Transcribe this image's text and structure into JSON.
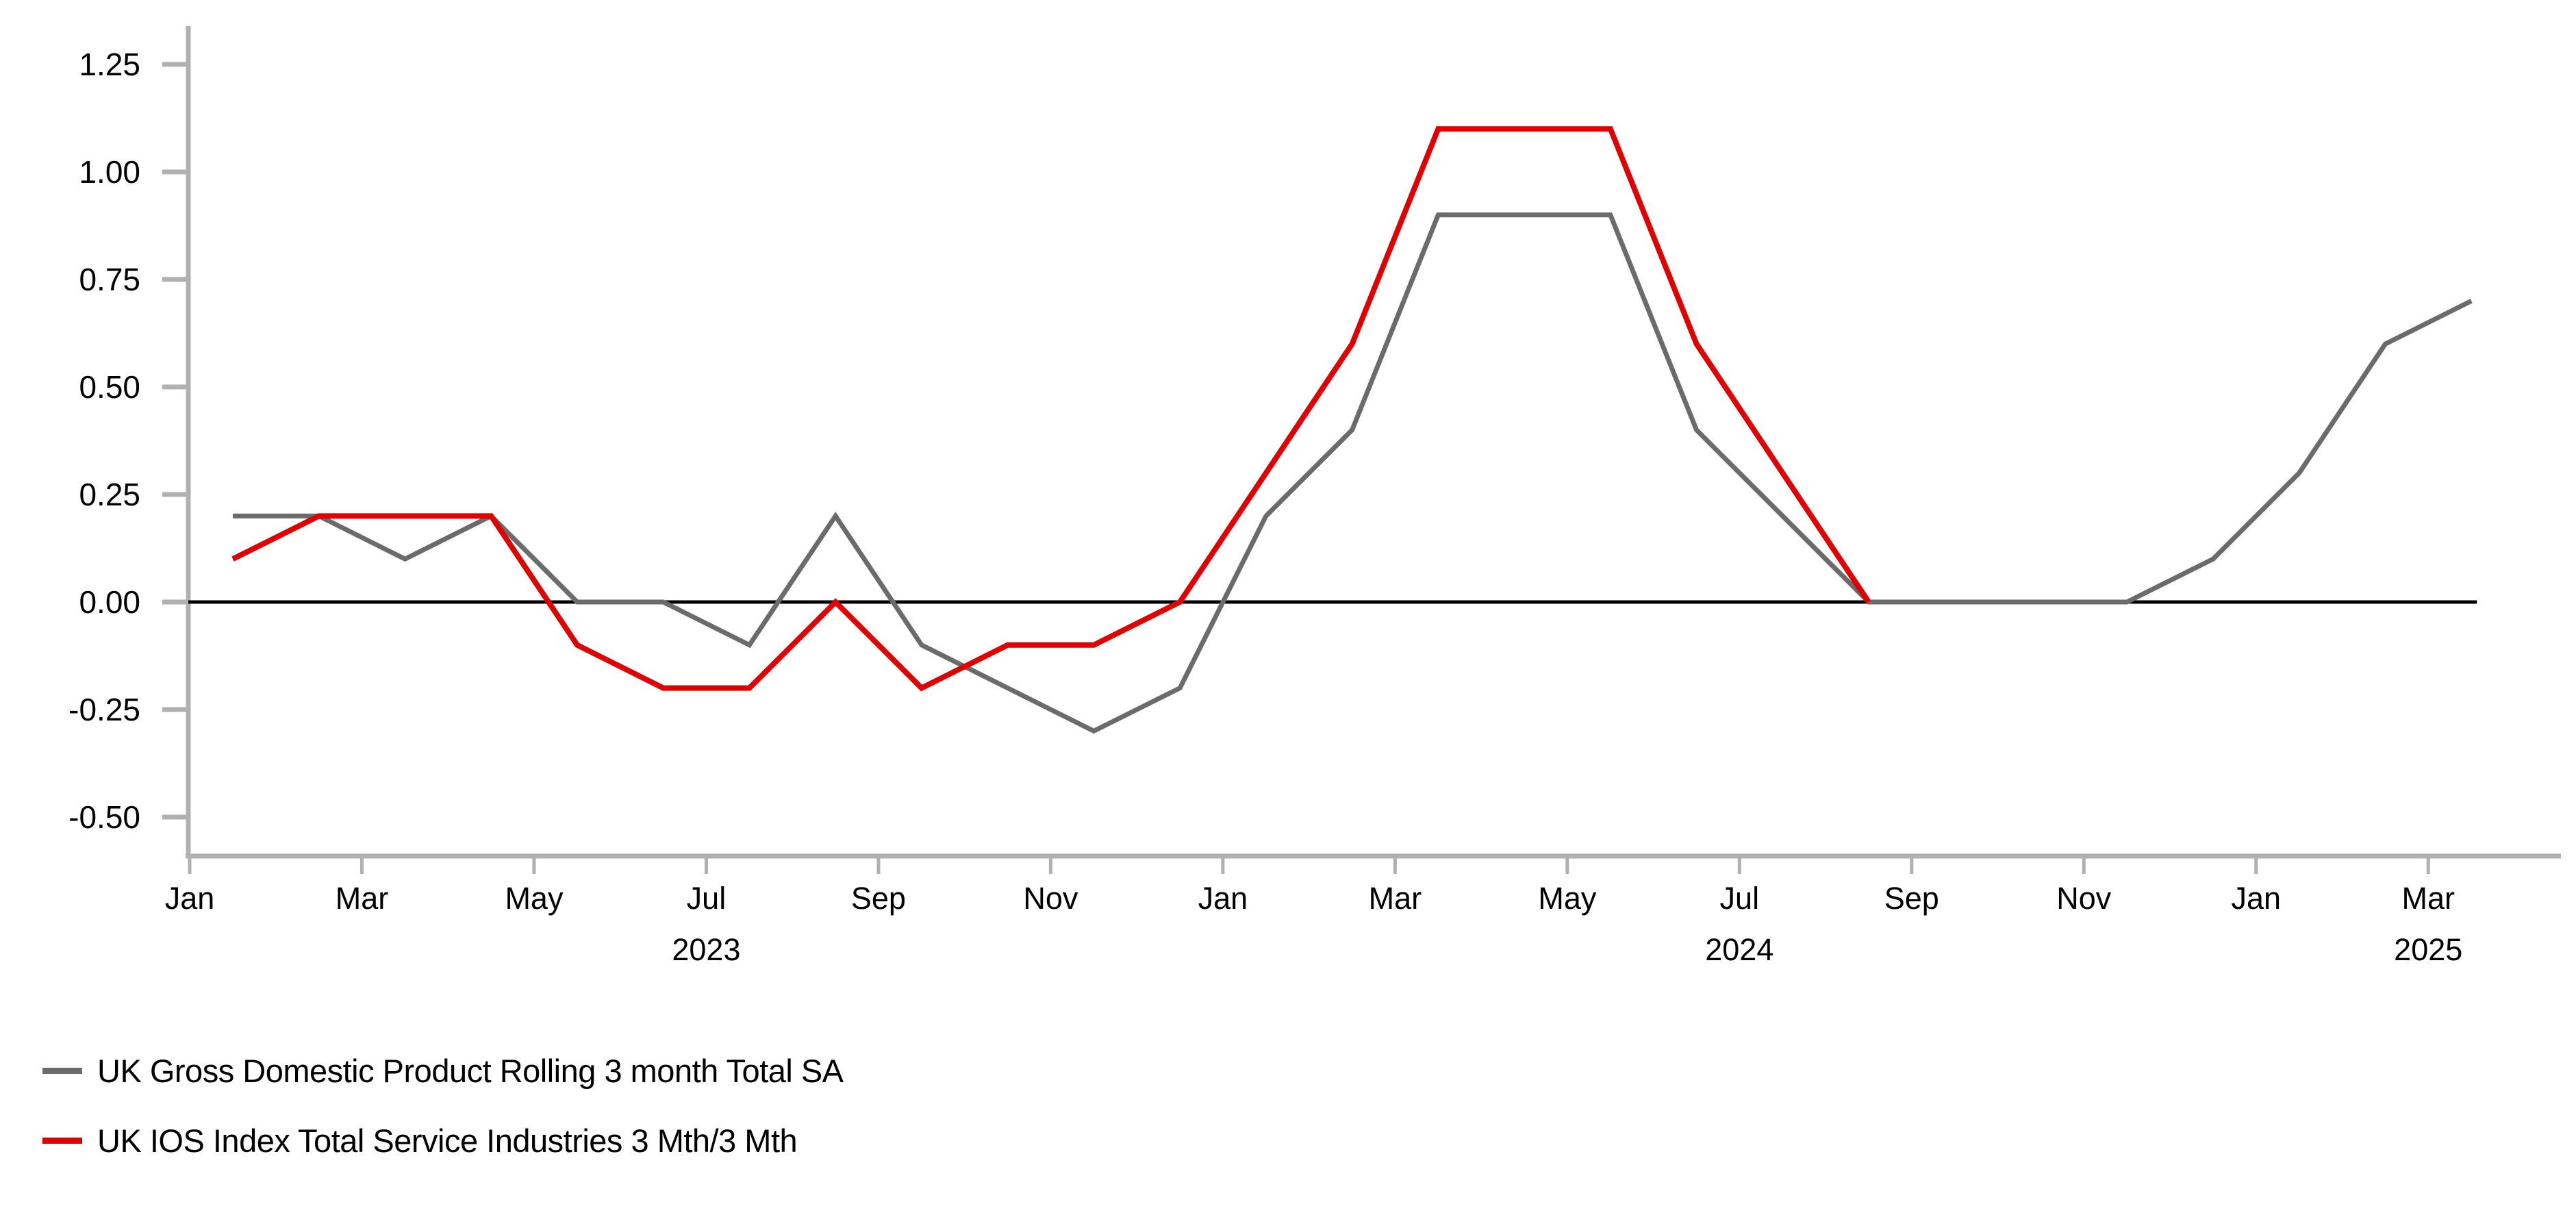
{
  "chart_data": {
    "type": "line",
    "title": "",
    "xlabel": "",
    "ylabel": "",
    "grid": false,
    "zero_line": true,
    "legend_position": "bottom-left",
    "ylim": [
      -0.5,
      1.25
    ],
    "ytick_step": 0.25,
    "y_tick_labels": [
      "1.25",
      "1.00",
      "0.75",
      "0.50",
      "0.25",
      "0.00",
      "-0.25",
      "-0.50"
    ],
    "months": [
      "2023-01",
      "2023-02",
      "2023-03",
      "2023-04",
      "2023-05",
      "2023-06",
      "2023-07",
      "2023-08",
      "2023-09",
      "2023-10",
      "2023-11",
      "2023-12",
      "2024-01",
      "2024-02",
      "2024-03",
      "2024-04",
      "2024-05",
      "2024-06",
      "2024-07",
      "2024-08",
      "2024-09",
      "2024-10",
      "2024-11",
      "2024-12",
      "2025-01",
      "2025-02",
      "2025-03"
    ],
    "x_ticks": [
      {
        "label": "Jan",
        "idx": 0
      },
      {
        "label": "Mar",
        "idx": 2
      },
      {
        "label": "May",
        "idx": 4
      },
      {
        "label": "Jul",
        "idx": 6
      },
      {
        "label": "Sep",
        "idx": 8
      },
      {
        "label": "Nov",
        "idx": 10
      },
      {
        "label": "Jan",
        "idx": 12
      },
      {
        "label": "Mar",
        "idx": 14
      },
      {
        "label": "May",
        "idx": 16
      },
      {
        "label": "Jul",
        "idx": 18
      },
      {
        "label": "Sep",
        "idx": 20
      },
      {
        "label": "Nov",
        "idx": 22
      },
      {
        "label": "Jan",
        "idx": 24
      },
      {
        "label": "Mar",
        "idx": 26
      }
    ],
    "year_labels": [
      {
        "label": "2023",
        "idx": 6
      },
      {
        "label": "2024",
        "idx": 18
      },
      {
        "label": "2025",
        "idx": 26
      }
    ],
    "series": [
      {
        "name": "UK Gross Domestic Product Rolling 3 month Total SA",
        "color": "#6b6b6b",
        "values": [
          0.2,
          0.2,
          0.1,
          0.2,
          0.0,
          0.0,
          -0.1,
          0.2,
          -0.1,
          -0.2,
          -0.3,
          -0.2,
          0.2,
          0.4,
          0.9,
          0.9,
          0.9,
          0.4,
          0.2,
          0.0,
          0.0,
          0.0,
          0.0,
          0.1,
          0.3,
          0.6,
          0.7
        ]
      },
      {
        "name": "UK IOS Index Total Service Industries 3 Mth/3 Mth",
        "color": "#e00000",
        "values": [
          0.1,
          0.2,
          0.2,
          0.2,
          -0.1,
          -0.2,
          -0.2,
          0.0,
          -0.2,
          -0.1,
          -0.1,
          0.0,
          0.3,
          0.6,
          1.1,
          1.1,
          1.1,
          0.6,
          0.3,
          0.0,
          null,
          null,
          null,
          null,
          null,
          null,
          null
        ]
      }
    ],
    "colors": {
      "axis": "#b0b0b0",
      "zero_line": "#000000",
      "text": "#000000",
      "background": "#ffffff"
    }
  }
}
